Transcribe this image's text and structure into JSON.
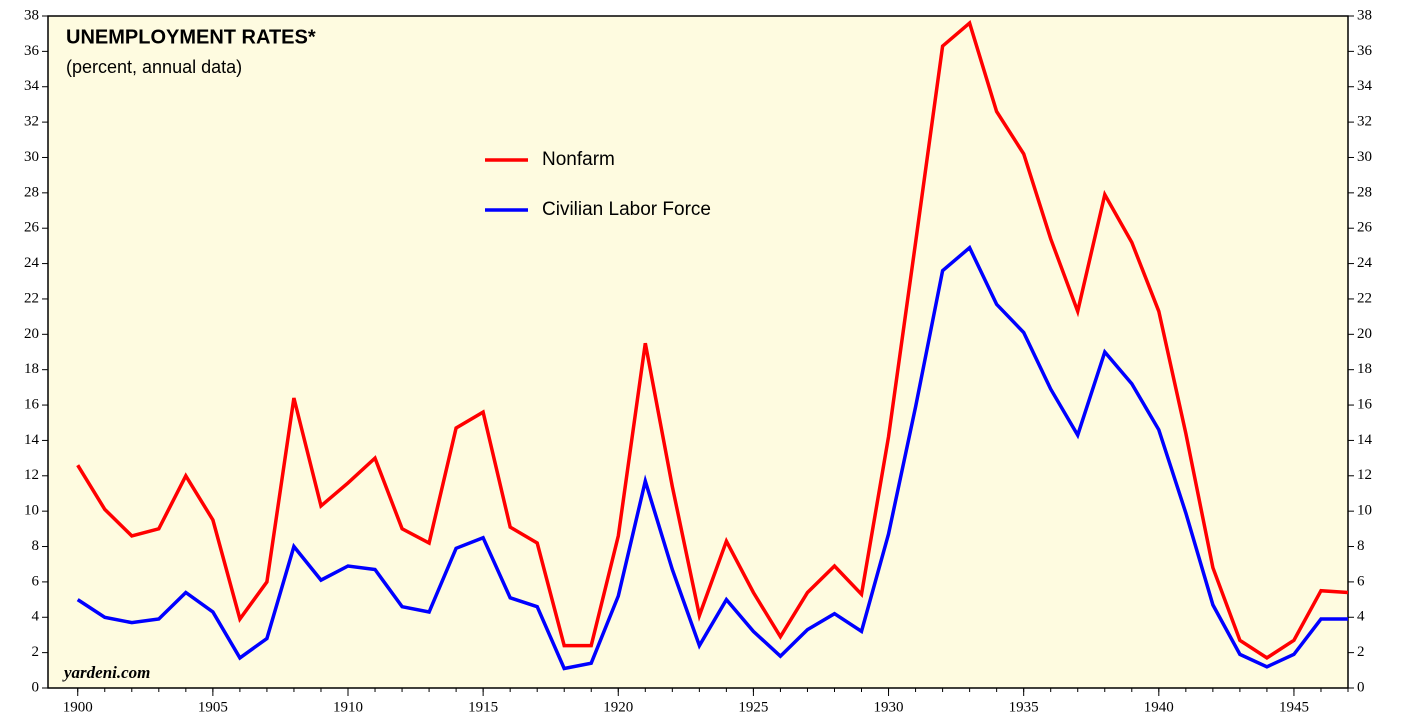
{
  "chart_data": {
    "type": "line",
    "title": "UNEMPLOYMENT RATES*",
    "subtitle": "(percent, annual data)",
    "annotation": "yardeni.com",
    "x": [
      1900,
      1901,
      1902,
      1903,
      1904,
      1905,
      1906,
      1907,
      1908,
      1909,
      1910,
      1911,
      1912,
      1913,
      1914,
      1915,
      1916,
      1917,
      1918,
      1919,
      1920,
      1921,
      1922,
      1923,
      1924,
      1925,
      1926,
      1927,
      1928,
      1929,
      1930,
      1931,
      1932,
      1933,
      1934,
      1935,
      1936,
      1937,
      1938,
      1939,
      1940,
      1941,
      1942,
      1943,
      1944,
      1945,
      1946,
      1947
    ],
    "series": [
      {
        "name": "Nonfarm",
        "color": "#ff0000",
        "values": [
          12.6,
          10.1,
          8.6,
          9.0,
          12.0,
          9.5,
          3.9,
          6.0,
          16.4,
          10.3,
          11.6,
          13.0,
          9.0,
          8.2,
          14.7,
          15.6,
          9.1,
          8.2,
          2.4,
          2.4,
          8.6,
          19.5,
          11.4,
          4.1,
          8.3,
          5.4,
          2.9,
          5.4,
          6.9,
          5.3,
          14.2,
          25.2,
          36.3,
          37.6,
          32.6,
          30.2,
          25.4,
          21.3,
          27.9,
          25.2,
          21.3,
          14.4,
          6.8,
          2.7,
          1.7,
          2.7,
          5.5,
          5.4
        ]
      },
      {
        "name": "Civilian Labor Force",
        "color": "#0000ff",
        "values": [
          5.0,
          4.0,
          3.7,
          3.9,
          5.4,
          4.3,
          1.7,
          2.8,
          8.0,
          6.1,
          6.9,
          6.7,
          4.6,
          4.3,
          7.9,
          8.5,
          5.1,
          4.6,
          1.1,
          1.4,
          5.2,
          11.7,
          6.7,
          2.4,
          5.0,
          3.2,
          1.8,
          3.3,
          4.2,
          3.2,
          8.7,
          15.9,
          23.6,
          24.9,
          21.7,
          20.1,
          16.9,
          14.3,
          19.0,
          17.2,
          14.6,
          9.9,
          4.7,
          1.9,
          1.2,
          1.9,
          3.9,
          3.9
        ]
      }
    ],
    "xlim": [
      1898.9,
      1947
    ],
    "xticks": [
      1900,
      1905,
      1910,
      1915,
      1920,
      1925,
      1930,
      1935,
      1940,
      1945
    ],
    "ylim": [
      0,
      38
    ],
    "yticks": [
      0,
      2,
      4,
      6,
      8,
      10,
      12,
      14,
      16,
      18,
      20,
      22,
      24,
      26,
      28,
      30,
      32,
      34,
      36,
      38
    ],
    "background": "#fefbe0"
  }
}
